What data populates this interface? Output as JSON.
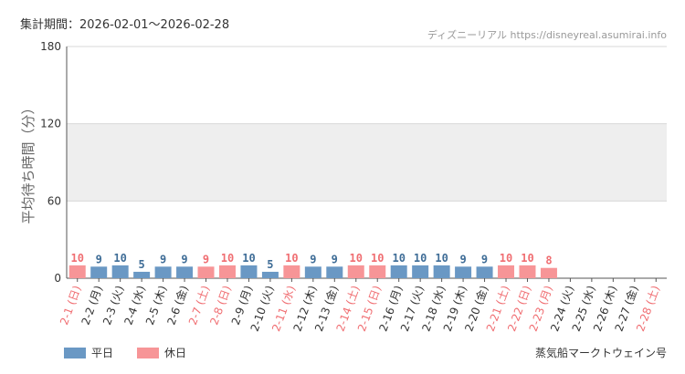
{
  "header": {
    "period_text": "集計期間：2026-02-01〜2026-02-28",
    "site_text": "ディズニーリアル https://disneyreal.asumirai.info"
  },
  "footer": {
    "attraction_name": "蒸気船マークトウェイン号"
  },
  "colors": {
    "weekday": "#6a98c4",
    "holiday": "#f79597",
    "holiday_text": "#f06e72",
    "weekday_text": "#3f6d97",
    "band": "#eeeeee"
  },
  "chart_data": {
    "type": "bar",
    "ylabel": "平均待ち時間（分）",
    "ylim": [
      0,
      180
    ],
    "yticks": [
      0,
      60,
      120,
      180
    ],
    "band_range": [
      60,
      120
    ],
    "legend": [
      {
        "key": "weekday",
        "label": "平日"
      },
      {
        "key": "holiday",
        "label": "休日"
      }
    ],
    "categories": [
      "2-1 (日)",
      "2-2 (月)",
      "2-3 (火)",
      "2-4 (水)",
      "2-5 (木)",
      "2-6 (金)",
      "2-7 (土)",
      "2-8 (日)",
      "2-9 (月)",
      "2-10 (火)",
      "2-11 (水)",
      "2-12 (木)",
      "2-13 (金)",
      "2-14 (土)",
      "2-15 (日)",
      "2-16 (月)",
      "2-17 (火)",
      "2-18 (水)",
      "2-19 (木)",
      "2-20 (金)",
      "2-21 (土)",
      "2-22 (日)",
      "2-23 (月)",
      "2-24 (火)",
      "2-25 (水)",
      "2-26 (木)",
      "2-27 (金)",
      "2-28 (土)"
    ],
    "values": [
      10,
      9,
      10,
      5,
      9,
      9,
      9,
      10,
      10,
      5,
      10,
      9,
      9,
      10,
      10,
      10,
      10,
      10,
      9,
      9,
      10,
      10,
      8,
      null,
      null,
      null,
      null,
      null
    ],
    "day_type": [
      "holiday",
      "weekday",
      "weekday",
      "weekday",
      "weekday",
      "weekday",
      "holiday",
      "holiday",
      "weekday",
      "weekday",
      "holiday",
      "weekday",
      "weekday",
      "holiday",
      "holiday",
      "weekday",
      "weekday",
      "weekday",
      "weekday",
      "weekday",
      "holiday",
      "holiday",
      "holiday",
      "weekday",
      "weekday",
      "weekday",
      "weekday",
      "holiday"
    ]
  }
}
